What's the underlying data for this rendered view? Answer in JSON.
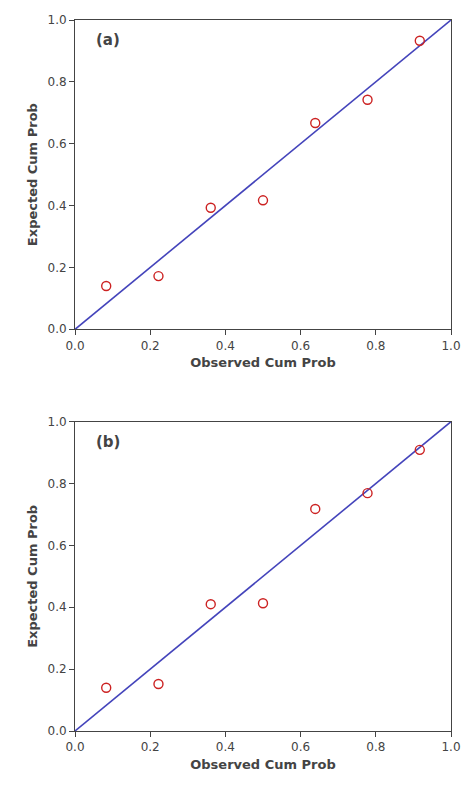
{
  "chart_data": [
    {
      "type": "scatter",
      "annotation": "(a)",
      "xlabel": "Observed Cum Prob",
      "ylabel": "Expected Cum Prob",
      "series": [
        {
          "type": "line",
          "color": "#4444bb",
          "line_style": "solid",
          "x": [
            0.0,
            1.0
          ],
          "values": [
            0.0,
            1.0
          ]
        },
        {
          "type": "scatter",
          "color": "#cc2222",
          "marker": "open circle",
          "x": [
            0.083,
            0.222,
            0.361,
            0.5,
            0.639,
            0.778,
            0.917
          ],
          "values": [
            0.14,
            0.172,
            0.393,
            0.417,
            0.667,
            0.742,
            0.933
          ]
        }
      ],
      "xlim": [
        0.0,
        1.0
      ],
      "ylim": [
        0.0,
        1.0
      ],
      "xticks": [
        {
          "value": 0,
          "label": "0.0"
        },
        0.2,
        0.4,
        0.6,
        0.8,
        {
          "value": 1,
          "label": "1.0"
        }
      ],
      "yticks": [
        {
          "value": 0,
          "label": "0.0"
        },
        0.2,
        0.4,
        0.6,
        0.8,
        {
          "value": 1,
          "label": "1.0"
        }
      ],
      "grid": false
    },
    {
      "type": "scatter",
      "annotation": "(b)",
      "xlabel": "Observed Cum Prob",
      "ylabel": "Expected Cum Prob",
      "series": [
        {
          "type": "line",
          "color": "#4444bb",
          "line_style": "solid",
          "x": [
            0.0,
            1.0
          ],
          "values": [
            0.0,
            1.0
          ]
        },
        {
          "type": "scatter",
          "color": "#cc2222",
          "marker": "open circle",
          "x": [
            0.083,
            0.222,
            0.361,
            0.5,
            0.639,
            0.778,
            0.917
          ],
          "values": [
            0.14,
            0.152,
            0.41,
            0.413,
            0.718,
            0.769,
            0.909
          ]
        }
      ],
      "xlim": [
        0.0,
        1.0
      ],
      "ylim": [
        0.0,
        1.0
      ],
      "xticks": [
        {
          "value": 0,
          "label": "0.0"
        },
        0.2,
        0.4,
        0.6,
        0.8,
        {
          "value": 1,
          "label": "1.0"
        }
      ],
      "yticks": [
        {
          "value": 0,
          "label": "0.0"
        },
        0.2,
        0.4,
        0.6,
        0.8,
        {
          "value": 1,
          "label": "1.0"
        }
      ],
      "grid": false
    }
  ]
}
